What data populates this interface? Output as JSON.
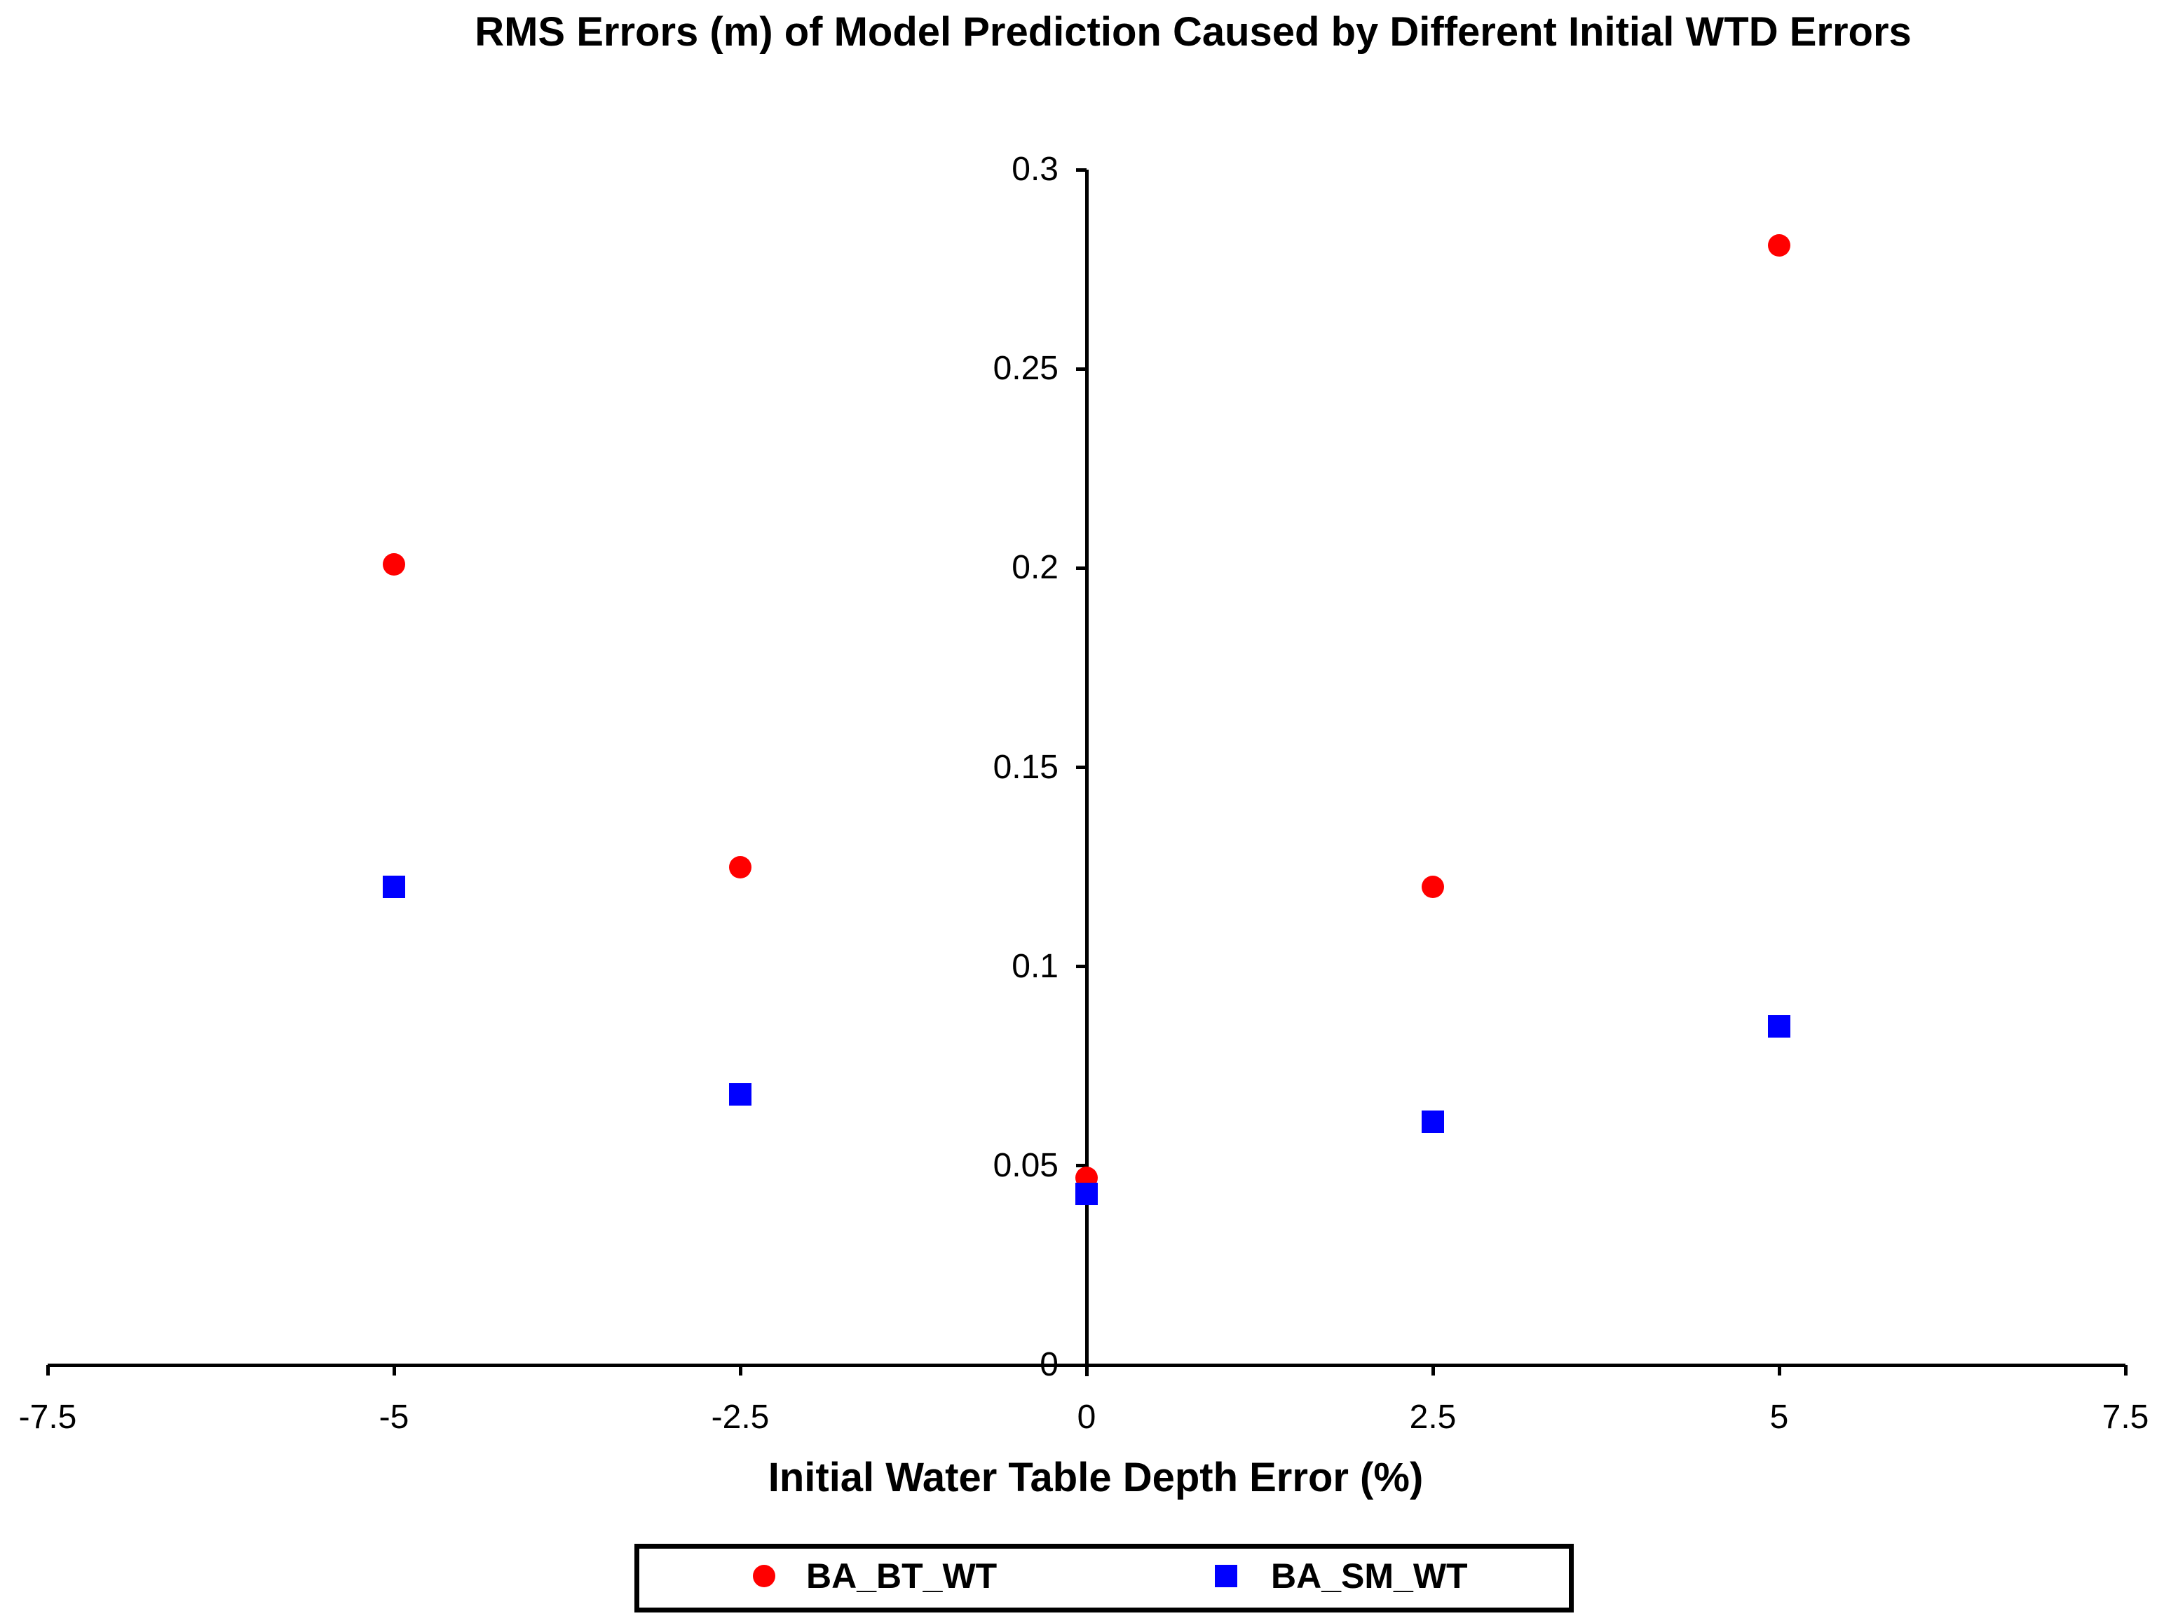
{
  "chart_data": {
    "type": "scatter",
    "title": "RMS Errors (m) of Model Prediction Caused by Different Initial WTD Errors",
    "xlabel": "Initial Water Table Depth Error (%)",
    "ylabel": "",
    "xlim": [
      -7.5,
      7.5
    ],
    "ylim": [
      0,
      0.3
    ],
    "x_ticks": [
      -7.5,
      -5,
      -2.5,
      0,
      2.5,
      5,
      7.5
    ],
    "x_tick_labels": [
      "-7.5",
      "-5",
      "-2.5",
      "0",
      "2.5",
      "5",
      "7.5"
    ],
    "y_ticks": [
      0,
      0.05,
      0.1,
      0.15,
      0.2,
      0.25,
      0.3
    ],
    "y_tick_labels": [
      "0",
      "0.05",
      "0.1",
      "0.15",
      "0.2",
      "0.25",
      "0.3"
    ],
    "grid": false,
    "legend_position": "bottom-center",
    "series": [
      {
        "name": "BA_BT_WT",
        "marker": "circle",
        "color": "#ff0000",
        "points": [
          {
            "x": -5,
            "y": 0.201
          },
          {
            "x": -2.5,
            "y": 0.125
          },
          {
            "x": 0,
            "y": 0.047
          },
          {
            "x": 2.5,
            "y": 0.12
          },
          {
            "x": 5,
            "y": 0.281
          }
        ]
      },
      {
        "name": "BA_SM_WT",
        "marker": "square",
        "color": "#0000ff",
        "points": [
          {
            "x": -5,
            "y": 0.12
          },
          {
            "x": -2.5,
            "y": 0.068
          },
          {
            "x": 0,
            "y": 0.043
          },
          {
            "x": 2.5,
            "y": 0.061
          },
          {
            "x": 5,
            "y": 0.085
          }
        ]
      }
    ]
  },
  "colors": {
    "axis": "#000000",
    "background": "#ffffff",
    "series_ba_bt_wt": "#ff0000",
    "series_ba_sm_wt": "#0000ff"
  }
}
